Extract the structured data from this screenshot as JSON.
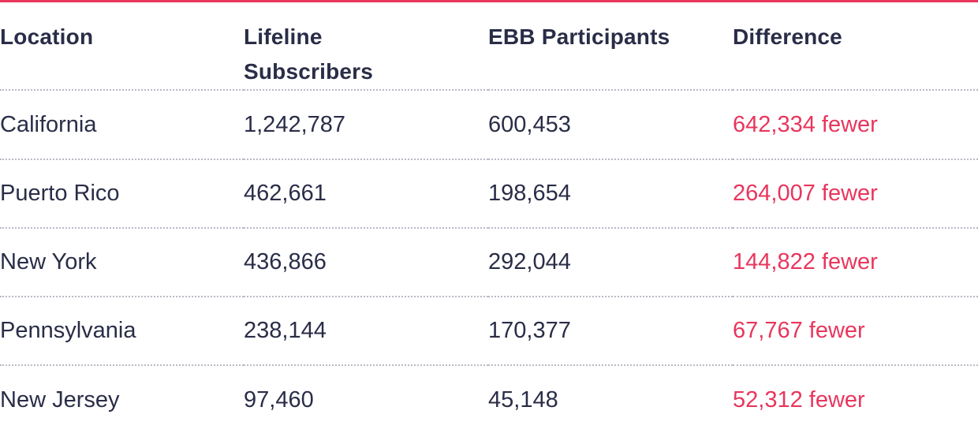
{
  "table": {
    "columns": [
      "Location",
      "Lifeline Subscribers",
      "EBB Participants",
      "Difference"
    ],
    "rows": [
      {
        "location": "California",
        "lifeline": "1,242,787",
        "ebb": "600,453",
        "difference": "642,334 fewer"
      },
      {
        "location": "Puerto Rico",
        "lifeline": "462,661",
        "ebb": "198,654",
        "difference": "264,007 fewer"
      },
      {
        "location": "New York",
        "lifeline": "436,866",
        "ebb": "292,044",
        "difference": "144,822 fewer"
      },
      {
        "location": "Pennsylvania",
        "lifeline": "238,144",
        "ebb": "170,377",
        "difference": "67,767 fewer"
      },
      {
        "location": "New Jersey",
        "lifeline": "97,460",
        "ebb": "45,148",
        "difference": "52,312 fewer"
      }
    ]
  },
  "colors": {
    "accent": "#e8365d",
    "text": "#2a2d47",
    "divider": "#b9bac4"
  }
}
